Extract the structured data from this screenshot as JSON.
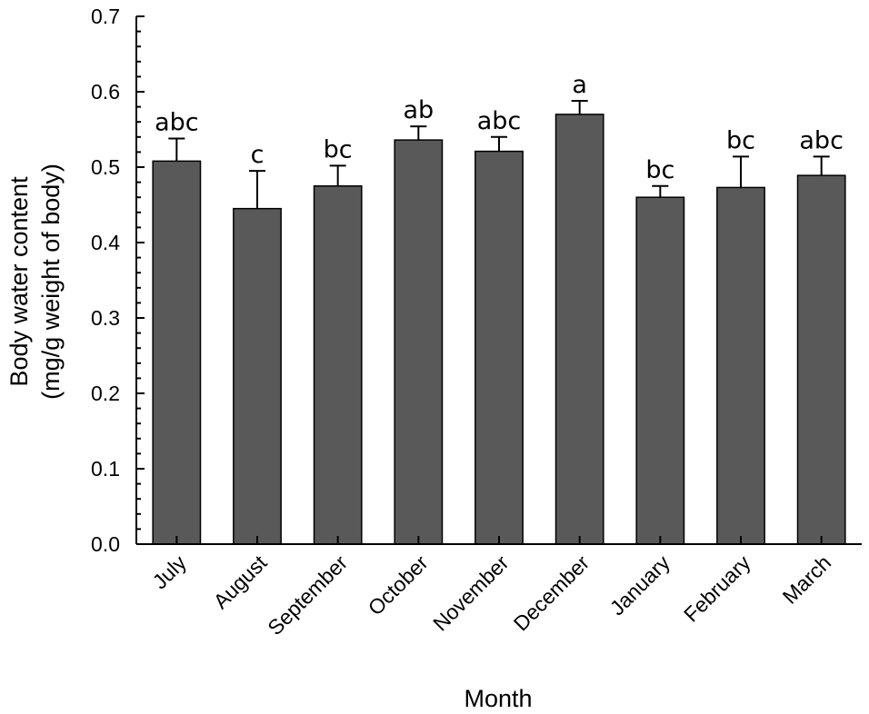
{
  "chart_data": {
    "type": "bar",
    "categories": [
      "July",
      "August",
      "September",
      "October",
      "November",
      "December",
      "January",
      "February",
      "March"
    ],
    "values": [
      0.508,
      0.445,
      0.475,
      0.536,
      0.521,
      0.57,
      0.46,
      0.473,
      0.489
    ],
    "error_upper": [
      0.538,
      0.495,
      0.502,
      0.554,
      0.54,
      0.588,
      0.475,
      0.514,
      0.514
    ],
    "significance_letters": [
      "abc",
      "c",
      "bc",
      "ab",
      "abc",
      "a",
      "bc",
      "bc",
      "abc"
    ],
    "xlabel": "Month",
    "ylabel_lines": [
      "Body water content",
      "(mg/g weight of body)"
    ],
    "ylim": [
      0,
      0.7
    ],
    "yticks": [
      "0.0",
      "0.1",
      "0.2",
      "0.3",
      "0.4",
      "0.5",
      "0.6",
      "0.7"
    ],
    "bar_color": "#595959",
    "grid": false
  }
}
